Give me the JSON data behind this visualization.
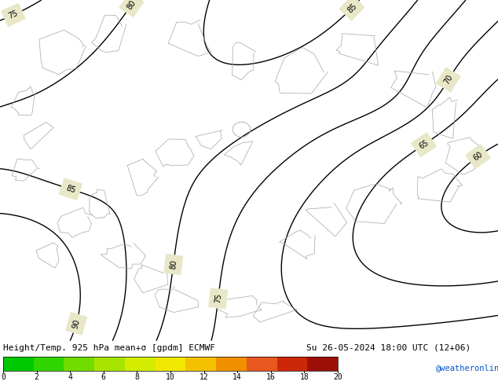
{
  "title_text": "Height/Temp. 925 hPa mean+σ [gpdm] ECMWF",
  "date_text": "Su 26-05-2024 18:00 UTC (12+06)",
  "colorbar_ticks": [
    0,
    2,
    4,
    6,
    8,
    10,
    12,
    14,
    16,
    18,
    20
  ],
  "colorbar_colors": [
    "#00c800",
    "#30d400",
    "#70dc00",
    "#a8e400",
    "#d4ec00",
    "#f0e800",
    "#f4c000",
    "#f09000",
    "#e85820",
    "#cc2808",
    "#9c1008",
    "#780010"
  ],
  "map_bg": "#00c800",
  "bottom_bar_bg": "#ffffff",
  "fig_width": 6.34,
  "fig_height": 4.9,
  "dpi": 100,
  "watermark": "@weatheronline.co.uk",
  "watermark_color": "#0055cc",
  "title_color": "#000000",
  "contour_color": "#000000",
  "gray_color": "#aaaaaa"
}
